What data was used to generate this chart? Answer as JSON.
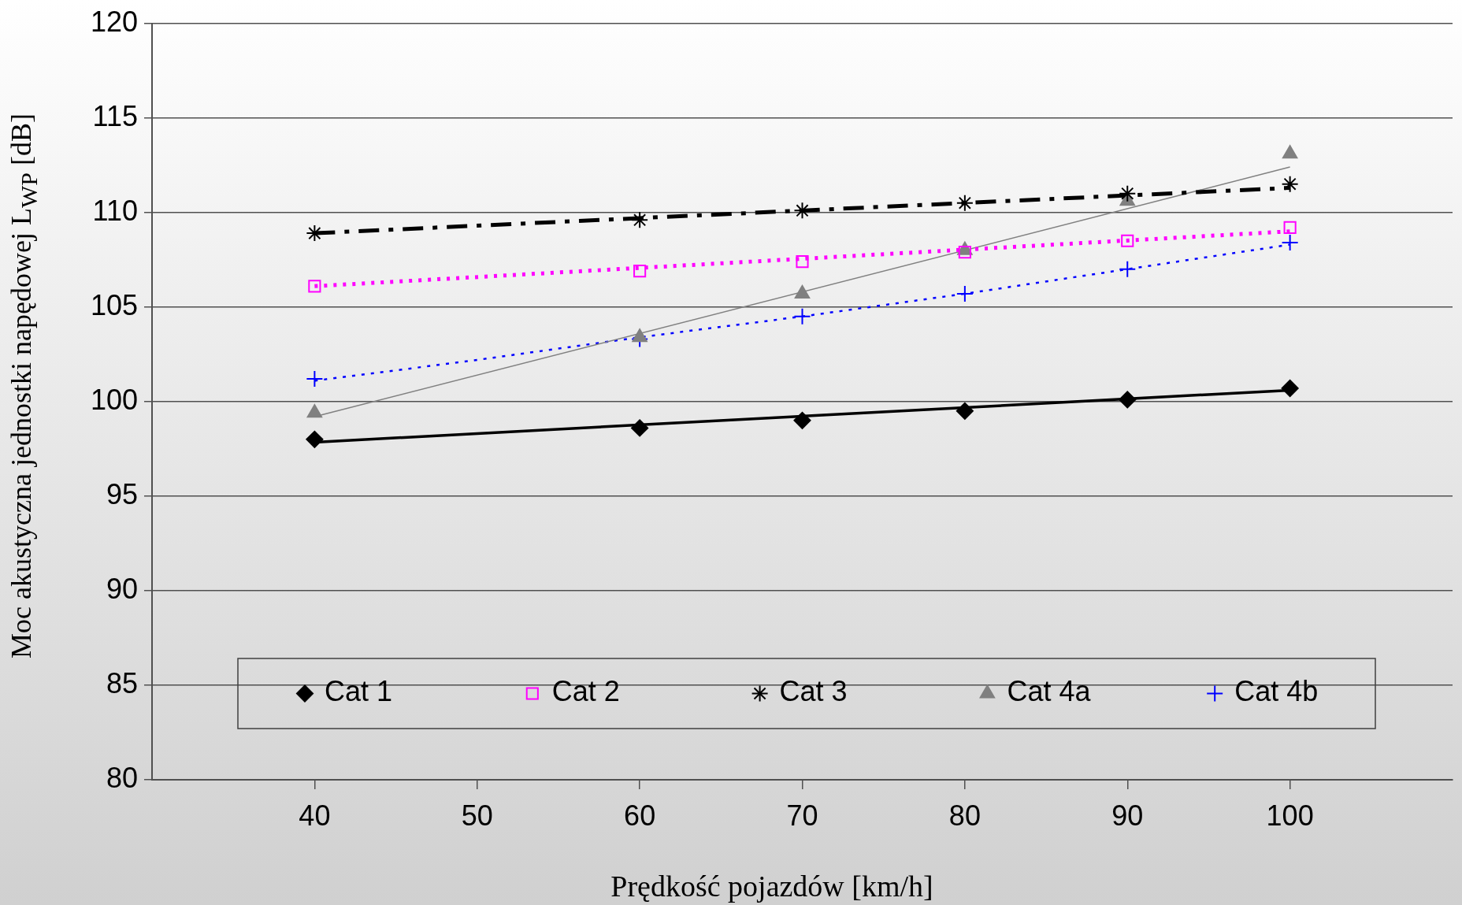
{
  "chart_data": {
    "type": "scatter",
    "xlabel": "Prędkość pojazdów [km/h]",
    "ylabel": "Moc akustyczna jednostki napędowej L$_{WP}$ [dB]",
    "x": [
      40,
      60,
      70,
      80,
      90,
      100
    ],
    "xlim": [
      30,
      110
    ],
    "xticks": [
      40,
      50,
      60,
      70,
      80,
      90,
      100
    ],
    "ylim": [
      80,
      120
    ],
    "yticks": [
      80,
      85,
      90,
      95,
      100,
      105,
      110,
      115,
      120
    ],
    "grid": "y",
    "legend": "bottom",
    "series": [
      {
        "name": "Cat 1",
        "color": "#000000",
        "marker": "diamond",
        "values": [
          98.0,
          98.6,
          99.0,
          99.5,
          100.1,
          100.7
        ]
      },
      {
        "name": "Cat 2",
        "color": "#ff00ff",
        "marker": "square",
        "values": [
          106.1,
          106.9,
          107.4,
          107.9,
          108.5,
          109.2
        ]
      },
      {
        "name": "Cat 3",
        "color": "#000000",
        "marker": "cross",
        "values": [
          108.9,
          109.6,
          110.1,
          110.5,
          111.0,
          111.5
        ]
      },
      {
        "name": "Cat 4a",
        "color": "#808080",
        "marker": "triangle",
        "values": [
          99.4,
          103.4,
          105.7,
          108.0,
          110.6,
          113.1
        ]
      },
      {
        "name": "Cat 4b",
        "color": "#0000ff",
        "marker": "cross",
        "values": [
          101.2,
          103.3,
          104.5,
          105.7,
          107.0,
          108.4
        ]
      },
      {
        "type": "line",
        "color": "#000000",
        "line_style": "solid",
        "x": [
          40,
          100
        ],
        "values": [
          97.85,
          100.6
        ]
      },
      {
        "type": "line",
        "color": "#ff00ff",
        "line_style": "dotted",
        "x": [
          40,
          100
        ],
        "values": [
          106.1,
          109.0
        ]
      },
      {
        "type": "line",
        "color": "#000000",
        "line_style": "dashed",
        "x": [
          40,
          100
        ],
        "values": [
          108.9,
          111.3
        ]
      },
      {
        "type": "line",
        "color": "#808080",
        "line_style": "solid",
        "x": [
          40,
          100
        ],
        "values": [
          99.2,
          112.4
        ]
      },
      {
        "type": "line",
        "color": "#0000ff",
        "line_style": "dotted",
        "x": [
          40,
          50,
          60,
          70,
          80,
          90,
          100
        ],
        "values": [
          101.1,
          102.2,
          103.4,
          104.5,
          105.7,
          107.0,
          108.3
        ]
      }
    ]
  }
}
